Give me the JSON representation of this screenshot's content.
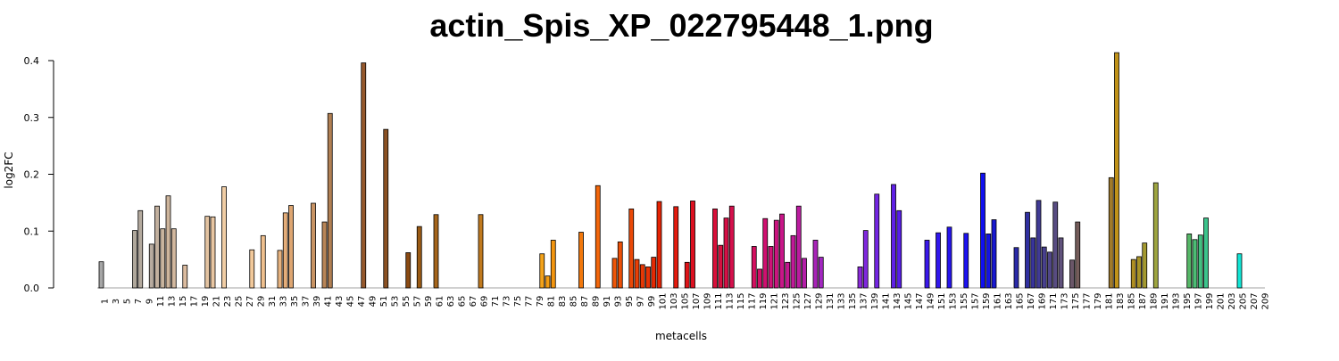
{
  "chart_data": {
    "type": "bar",
    "title": "actin_Spis_XP_022795448_1.png",
    "xlabel": "metacells",
    "ylabel": "log2FC",
    "ylim": [
      0,
      0.4
    ],
    "y_ticks": [
      "0.0",
      "0.1",
      "0.2",
      "0.3",
      "0.4"
    ],
    "x_ticks": [
      "1",
      "3",
      "5",
      "7",
      "9",
      "11",
      "13",
      "15",
      "17",
      "19",
      "21",
      "23",
      "25",
      "27",
      "29",
      "31",
      "33",
      "35",
      "37",
      "39",
      "41",
      "43",
      "45",
      "47",
      "49",
      "51",
      "53",
      "55",
      "57",
      "59",
      "61",
      "63",
      "65",
      "67",
      "69",
      "71",
      "73",
      "75",
      "77",
      "79",
      "81",
      "83",
      "85",
      "87",
      "89",
      "91",
      "93",
      "95",
      "97",
      "99",
      "101",
      "103",
      "105",
      "107",
      "109",
      "111",
      "113",
      "115",
      "117",
      "119",
      "121",
      "123",
      "125",
      "127",
      "129",
      "131",
      "133",
      "135",
      "137",
      "139",
      "141",
      "143",
      "145",
      "147",
      "149",
      "151",
      "153",
      "155",
      "157",
      "159",
      "161",
      "163",
      "165",
      "167",
      "169",
      "171",
      "173",
      "175",
      "177",
      "179",
      "181",
      "183",
      "185",
      "187",
      "189",
      "191",
      "193",
      "195",
      "197",
      "199",
      "201",
      "203",
      "205",
      "207",
      "209"
    ],
    "grid": false,
    "categories_range": [
      1,
      209
    ],
    "bars": [
      {
        "x": 1,
        "value": 0.046,
        "color": "#a6a6a6"
      },
      {
        "x": 7,
        "value": 0.101,
        "color": "#b0a89c"
      },
      {
        "x": 8,
        "value": 0.136,
        "color": "#b4aa9e"
      },
      {
        "x": 10,
        "value": 0.077,
        "color": "#b8ab9f"
      },
      {
        "x": 11,
        "value": 0.144,
        "color": "#c2b09e"
      },
      {
        "x": 12,
        "value": 0.104,
        "color": "#c8b49e"
      },
      {
        "x": 13,
        "value": 0.162,
        "color": "#cdb59c"
      },
      {
        "x": 14,
        "value": 0.104,
        "color": "#d2b89f"
      },
      {
        "x": 16,
        "value": 0.04,
        "color": "#dbbb9f"
      },
      {
        "x": 20,
        "value": 0.126,
        "color": "#e3c3a1"
      },
      {
        "x": 21,
        "value": 0.125,
        "color": "#e8c6a2"
      },
      {
        "x": 23,
        "value": 0.178,
        "color": "#f0cda5"
      },
      {
        "x": 28,
        "value": 0.067,
        "color": "#f2c99b"
      },
      {
        "x": 30,
        "value": 0.092,
        "color": "#efc08f"
      },
      {
        "x": 33,
        "value": 0.066,
        "color": "#e6b27f"
      },
      {
        "x": 34,
        "value": 0.132,
        "color": "#e4ad79"
      },
      {
        "x": 35,
        "value": 0.145,
        "color": "#dea672"
      },
      {
        "x": 39,
        "value": 0.149,
        "color": "#c99464"
      },
      {
        "x": 41,
        "value": 0.116,
        "color": "#b98658"
      },
      {
        "x": 42,
        "value": 0.307,
        "color": "#b07f53"
      },
      {
        "x": 48,
        "value": 0.396,
        "color": "#96592d"
      },
      {
        "x": 52,
        "value": 0.279,
        "color": "#8a5123"
      },
      {
        "x": 56,
        "value": 0.062,
        "color": "#8a4a12"
      },
      {
        "x": 58,
        "value": 0.108,
        "color": "#9a5a14"
      },
      {
        "x": 61,
        "value": 0.129,
        "color": "#a5651b"
      },
      {
        "x": 69,
        "value": 0.129,
        "color": "#c07a1f"
      },
      {
        "x": 80,
        "value": 0.06,
        "color": "#f3a21a"
      },
      {
        "x": 81,
        "value": 0.021,
        "color": "#f39c12"
      },
      {
        "x": 82,
        "value": 0.084,
        "color": "#f3950f"
      },
      {
        "x": 87,
        "value": 0.098,
        "color": "#f2780c"
      },
      {
        "x": 90,
        "value": 0.18,
        "color": "#f2660a"
      },
      {
        "x": 93,
        "value": 0.052,
        "color": "#ee5609"
      },
      {
        "x": 94,
        "value": 0.081,
        "color": "#ec5008"
      },
      {
        "x": 96,
        "value": 0.139,
        "color": "#ea4807"
      },
      {
        "x": 97,
        "value": 0.05,
        "color": "#e93f06"
      },
      {
        "x": 98,
        "value": 0.041,
        "color": "#e83805"
      },
      {
        "x": 99,
        "value": 0.037,
        "color": "#e73104"
      },
      {
        "x": 100,
        "value": 0.054,
        "color": "#e62a04"
      },
      {
        "x": 101,
        "value": 0.152,
        "color": "#e52303"
      },
      {
        "x": 104,
        "value": 0.143,
        "color": "#e31b0e"
      },
      {
        "x": 106,
        "value": 0.045,
        "color": "#df1418"
      },
      {
        "x": 107,
        "value": 0.153,
        "color": "#dd1020"
      },
      {
        "x": 111,
        "value": 0.139,
        "color": "#d8103a"
      },
      {
        "x": 112,
        "value": 0.075,
        "color": "#d61040"
      },
      {
        "x": 113,
        "value": 0.123,
        "color": "#d51046"
      },
      {
        "x": 114,
        "value": 0.144,
        "color": "#d4104c"
      },
      {
        "x": 118,
        "value": 0.073,
        "color": "#d41060"
      },
      {
        "x": 119,
        "value": 0.033,
        "color": "#d21068"
      },
      {
        "x": 120,
        "value": 0.122,
        "color": "#d01070"
      },
      {
        "x": 121,
        "value": 0.073,
        "color": "#ce1278"
      },
      {
        "x": 122,
        "value": 0.119,
        "color": "#cc1480"
      },
      {
        "x": 123,
        "value": 0.13,
        "color": "#c81688"
      },
      {
        "x": 124,
        "value": 0.045,
        "color": "#c41890"
      },
      {
        "x": 125,
        "value": 0.092,
        "color": "#c01a98"
      },
      {
        "x": 126,
        "value": 0.144,
        "color": "#bc1ca0"
      },
      {
        "x": 127,
        "value": 0.052,
        "color": "#b41ea8"
      },
      {
        "x": 129,
        "value": 0.084,
        "color": "#a824b8"
      },
      {
        "x": 130,
        "value": 0.054,
        "color": "#a228c0"
      },
      {
        "x": 137,
        "value": 0.037,
        "color": "#8a2ad8"
      },
      {
        "x": 138,
        "value": 0.101,
        "color": "#8028de"
      },
      {
        "x": 140,
        "value": 0.165,
        "color": "#7426e2"
      },
      {
        "x": 143,
        "value": 0.182,
        "color": "#6020e6"
      },
      {
        "x": 144,
        "value": 0.136,
        "color": "#581ee8"
      },
      {
        "x": 149,
        "value": 0.084,
        "color": "#3a18ea"
      },
      {
        "x": 151,
        "value": 0.097,
        "color": "#3016ec"
      },
      {
        "x": 153,
        "value": 0.107,
        "color": "#2614ee"
      },
      {
        "x": 156,
        "value": 0.096,
        "color": "#1c12f0"
      },
      {
        "x": 159,
        "value": 0.202,
        "color": "#1010f0"
      },
      {
        "x": 160,
        "value": 0.095,
        "color": "#1414e0"
      },
      {
        "x": 161,
        "value": 0.12,
        "color": "#1818d0"
      },
      {
        "x": 165,
        "value": 0.071,
        "color": "#2a2aa8"
      },
      {
        "x": 167,
        "value": 0.133,
        "color": "#3030a0"
      },
      {
        "x": 168,
        "value": 0.088,
        "color": "#38349a"
      },
      {
        "x": 169,
        "value": 0.154,
        "color": "#403a94"
      },
      {
        "x": 170,
        "value": 0.072,
        "color": "#48408e"
      },
      {
        "x": 171,
        "value": 0.063,
        "color": "#504688"
      },
      {
        "x": 172,
        "value": 0.151,
        "color": "#584c82"
      },
      {
        "x": 173,
        "value": 0.088,
        "color": "#60527c"
      },
      {
        "x": 175,
        "value": 0.049,
        "color": "#6a5668"
      },
      {
        "x": 176,
        "value": 0.116,
        "color": "#745c5a"
      },
      {
        "x": 182,
        "value": 0.194,
        "color": "#a07a2a"
      },
      {
        "x": 183,
        "value": 0.414,
        "color": "#c09218"
      },
      {
        "x": 186,
        "value": 0.05,
        "color": "#b08f22"
      },
      {
        "x": 187,
        "value": 0.055,
        "color": "#a99428"
      },
      {
        "x": 188,
        "value": 0.079,
        "color": "#a49a30"
      },
      {
        "x": 190,
        "value": 0.185,
        "color": "#9ea540"
      },
      {
        "x": 196,
        "value": 0.095,
        "color": "#56b868"
      },
      {
        "x": 197,
        "value": 0.085,
        "color": "#4cbc74"
      },
      {
        "x": 198,
        "value": 0.093,
        "color": "#44c080"
      },
      {
        "x": 199,
        "value": 0.123,
        "color": "#3cc48c"
      },
      {
        "x": 205,
        "value": 0.06,
        "color": "#12e6d6"
      }
    ]
  }
}
